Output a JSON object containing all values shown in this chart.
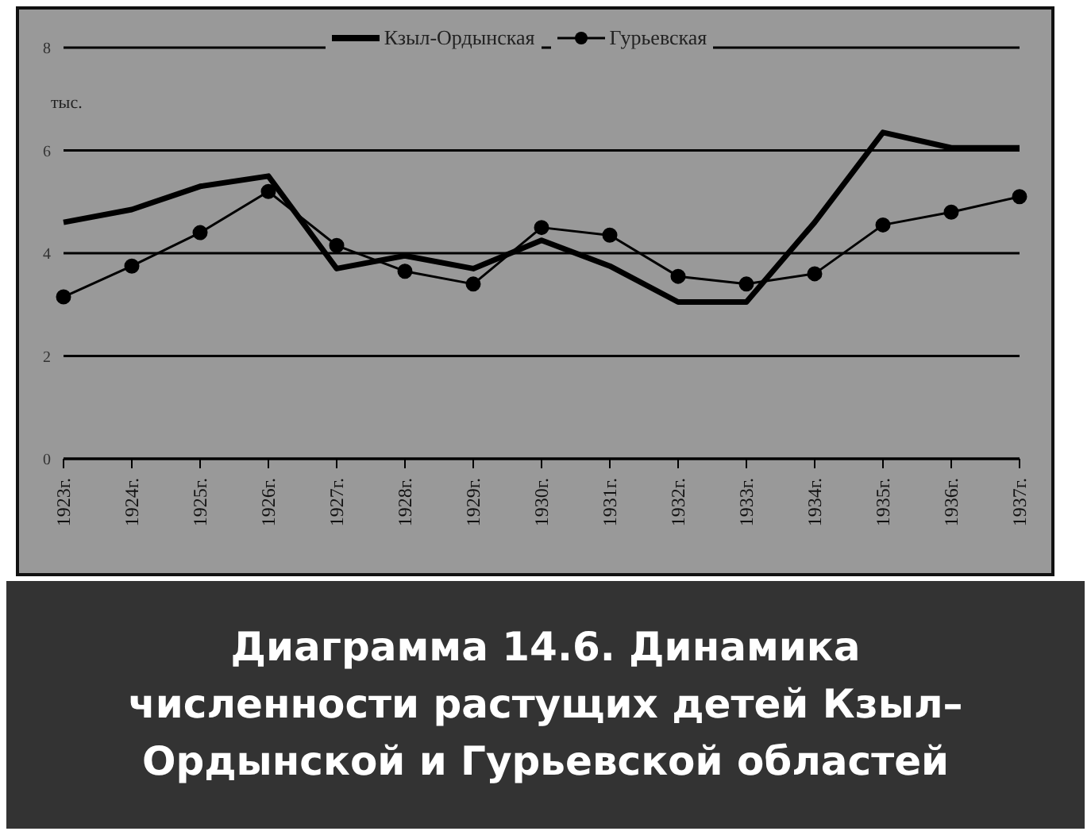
{
  "chart_data": {
    "type": "line",
    "title": "Диаграмма 14.6. Динамика численности растущих детей Кзыл–Ордынской и Гурьевской областей",
    "ylabel": "тыс.",
    "categories": [
      "1923г.",
      "1924г.",
      "1925г.",
      "1926г.",
      "1927г.",
      "1928г.",
      "1929г.",
      "1930г.",
      "1931г.",
      "1932г.",
      "1933г.",
      "1934г.",
      "1935г.",
      "1936г.",
      "1937г."
    ],
    "series": [
      {
        "name": "Кзыл-Ордынская",
        "color": "#000000",
        "marker": "none",
        "values": [
          4.6,
          4.85,
          5.3,
          5.5,
          3.7,
          3.95,
          3.7,
          4.25,
          3.75,
          3.05,
          3.05,
          4.6,
          6.35,
          6.05,
          6.05
        ]
      },
      {
        "name": "Гурьевская",
        "color": "#000000",
        "marker": "circle",
        "values": [
          3.15,
          3.75,
          4.4,
          5.2,
          4.15,
          3.65,
          3.4,
          4.5,
          4.35,
          3.55,
          3.4,
          3.6,
          4.55,
          4.8,
          5.1
        ]
      }
    ],
    "ylim": [
      0,
      8
    ],
    "yticks": [
      0,
      2,
      4,
      6,
      8
    ],
    "grid": "y",
    "legend": "top"
  }
}
